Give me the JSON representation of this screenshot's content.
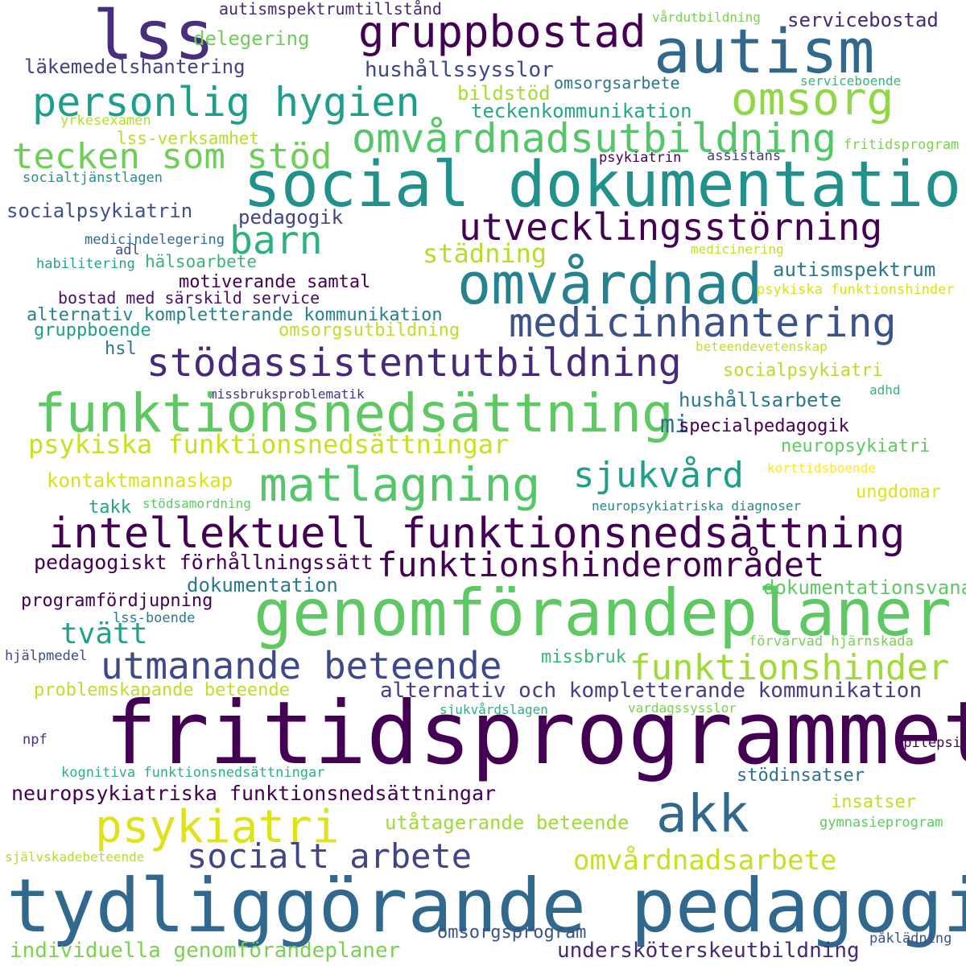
{
  "words": [
    {
      "text": "lss",
      "color": "#472f7d"
    },
    {
      "text": "gruppbostad",
      "color": "#440154"
    },
    {
      "text": "autism",
      "color": "#31688e"
    },
    {
      "text": "autismspektrumtillstånd",
      "color": "#482878"
    },
    {
      "text": "delegering",
      "color": "#6ece58"
    },
    {
      "text": "vårdutbildning",
      "color": "#7ad151"
    },
    {
      "text": "servicebostad",
      "color": "#482878"
    },
    {
      "text": "läkemedelshantering",
      "color": "#414487"
    },
    {
      "text": "hushållssysslor",
      "color": "#3e4989"
    },
    {
      "text": "personlig hygien",
      "color": "#1f9e89"
    },
    {
      "text": "omsorg",
      "color": "#8fd744"
    },
    {
      "text": "bildstöd",
      "color": "#a5db36"
    },
    {
      "text": "omsorgsarbete",
      "color": "#2a788e"
    },
    {
      "text": "serviceboende",
      "color": "#35b779"
    },
    {
      "text": "teckenkommunikation",
      "color": "#22a884"
    },
    {
      "text": "yrkesexamen",
      "color": "#b5de2b"
    },
    {
      "text": "omvårdnadsutbildning",
      "color": "#54c568"
    },
    {
      "text": "lss-verksamhet",
      "color": "#b5de2b"
    },
    {
      "text": "tecken som stöd",
      "color": "#6ece58"
    },
    {
      "text": "fritidsprogram",
      "color": "#7ad151"
    },
    {
      "text": "psykiatrin",
      "color": "#440154"
    },
    {
      "text": "assistans",
      "color": "#443983"
    },
    {
      "text": "socialtjänstlagen",
      "color": "#21918c"
    },
    {
      "text": "social dokumentation",
      "color": "#21918c"
    },
    {
      "text": "socialpsykiatrin",
      "color": "#3b528b"
    },
    {
      "text": "pedagogik",
      "color": "#414487"
    },
    {
      "text": "utvecklingsstörning",
      "color": "#440154"
    },
    {
      "text": "barn",
      "color": "#2db27d"
    },
    {
      "text": "medicindelegering",
      "color": "#31688e"
    },
    {
      "text": "adl",
      "color": "#3e4989"
    },
    {
      "text": "städning",
      "color": "#b5de2b"
    },
    {
      "text": "medicinering",
      "color": "#c8e020"
    },
    {
      "text": "habilitering",
      "color": "#20a386"
    },
    {
      "text": "hälsoarbete",
      "color": "#35b779"
    },
    {
      "text": "omvårdnad",
      "color": "#26828e"
    },
    {
      "text": "autismspektrum",
      "color": "#2a788e"
    },
    {
      "text": "motiverande samtal",
      "color": "#440154"
    },
    {
      "text": "bostad med särskild service",
      "color": "#471063"
    },
    {
      "text": "psykiska funktionshinder",
      "color": "#d8e219"
    },
    {
      "text": "alternativ kompletterande kommunikation",
      "color": "#26828e"
    },
    {
      "text": "medicinhantering",
      "color": "#3b528b"
    },
    {
      "text": "gruppboende",
      "color": "#1f9e89"
    },
    {
      "text": "omsorgsutbildning",
      "color": "#bddf26"
    },
    {
      "text": "hsl",
      "color": "#2a788e"
    },
    {
      "text": "beteendevetenskap",
      "color": "#c2df23"
    },
    {
      "text": "stödassistentutbildning",
      "color": "#482878"
    },
    {
      "text": "socialpsykiatri",
      "color": "#b5de2b"
    },
    {
      "text": "missbruksproblematik",
      "color": "#46337e"
    },
    {
      "text": "adhd",
      "color": "#35b779"
    },
    {
      "text": "hushållsarbete",
      "color": "#2a788e"
    },
    {
      "text": "funktionsnedsättning",
      "color": "#5ec962"
    },
    {
      "text": "mi",
      "color": "#2d708e"
    },
    {
      "text": "specialpedagogik",
      "color": "#440154"
    },
    {
      "text": "psykiska funktionsnedsättningar",
      "color": "#c8e020"
    },
    {
      "text": "neuropsykiatri",
      "color": "#5ec962"
    },
    {
      "text": "sjukvård",
      "color": "#1f9e89"
    },
    {
      "text": "korttidsboende",
      "color": "#fde725"
    },
    {
      "text": "kontaktmannaskap",
      "color": "#d8e219"
    },
    {
      "text": "matlagning",
      "color": "#54c568"
    },
    {
      "text": "takk",
      "color": "#20a386"
    },
    {
      "text": "stödsamordning",
      "color": "#5ec962"
    },
    {
      "text": "neuropsykiatriska diagnoser",
      "color": "#238a8d"
    },
    {
      "text": "ungdomar",
      "color": "#dde318"
    },
    {
      "text": "intellektuell funktionsnedsättning",
      "color": "#440154"
    },
    {
      "text": "pedagogiskt förhållningssätt",
      "color": "#440154"
    },
    {
      "text": "funktionshinderområdet",
      "color": "#440154"
    },
    {
      "text": "dokumentation",
      "color": "#2a788e"
    },
    {
      "text": "dokumentationsvana",
      "color": "#5ec962"
    },
    {
      "text": "programfördjupning",
      "color": "#440154"
    },
    {
      "text": "genomförandeplaner",
      "color": "#5ec962"
    },
    {
      "text": "lss-boende",
      "color": "#2a788e"
    },
    {
      "text": "tvätt",
      "color": "#20a386"
    },
    {
      "text": "förvärvad hjärnskada",
      "color": "#7ad151"
    },
    {
      "text": "hjälpmedel",
      "color": "#3e4989"
    },
    {
      "text": "missbruk",
      "color": "#35b779"
    },
    {
      "text": "utmanande beteende",
      "color": "#3e4989"
    },
    {
      "text": "funktionshinder",
      "color": "#a0da39"
    },
    {
      "text": "problemskapande beteende",
      "color": "#bddf26"
    },
    {
      "text": "alternativ och kompletterande kommunikation",
      "color": "#433e85"
    },
    {
      "text": "sjukvårdslagen",
      "color": "#2db27d"
    },
    {
      "text": "vardagssysslor",
      "color": "#7ad151"
    },
    {
      "text": "fritidsprogrammet",
      "color": "#440154"
    },
    {
      "text": "npf",
      "color": "#472f7d"
    },
    {
      "text": "epilepsi",
      "color": "#440154"
    },
    {
      "text": "kognitiva funktionsnedsättningar",
      "color": "#2db27d"
    },
    {
      "text": "stödinsatser",
      "color": "#2c728e"
    },
    {
      "text": "neuropsykiatriska funktionsnedsättningar",
      "color": "#440154"
    },
    {
      "text": "insatser",
      "color": "#bddf26"
    },
    {
      "text": "akk",
      "color": "#31688e"
    },
    {
      "text": "psykiatri",
      "color": "#dde318"
    },
    {
      "text": "utåtagerande beteende",
      "color": "#a0da39"
    },
    {
      "text": "gymnasieprogram",
      "color": "#5ec962"
    },
    {
      "text": "socialt arbete",
      "color": "#414487"
    },
    {
      "text": "omvårdnadsarbete",
      "color": "#c8e020"
    },
    {
      "text": "självskadebeteende",
      "color": "#b5de2b"
    },
    {
      "text": "tydliggörande pedagogik",
      "color": "#31688e"
    },
    {
      "text": "omsorgsprogram",
      "color": "#3b528b"
    },
    {
      "text": "påklädning",
      "color": "#3b528b"
    },
    {
      "text": "individuella genomförandeplaner",
      "color": "#7ad151"
    },
    {
      "text": "undersköterskeutbildning",
      "color": "#482878"
    }
  ]
}
